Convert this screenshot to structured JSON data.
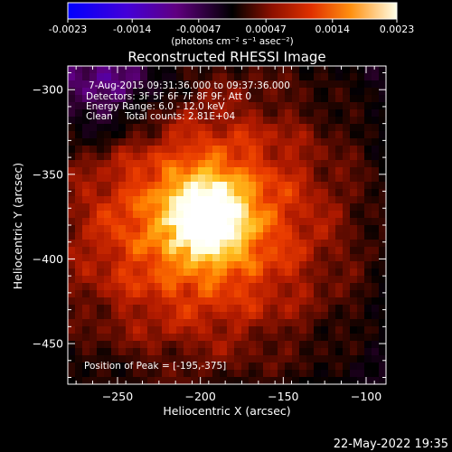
{
  "chart_data": {
    "type": "heatmap",
    "title": "Reconstructed RHESSI Image",
    "xlabel": "Heliocentric X (arcsec)",
    "ylabel": "Heliocentric Y (arcsec)",
    "xlim": [
      -280,
      -88
    ],
    "ylim": [
      -474,
      -286
    ],
    "x_ticks": [
      -250,
      -200,
      -150,
      -100
    ],
    "y_ticks": [
      -300,
      -350,
      -400,
      -450
    ],
    "grid": false,
    "colorbar": {
      "position": "top",
      "min": -0.0023,
      "max": 0.0023,
      "tick_values": [
        -0.0023,
        -0.0014,
        -0.00047,
        0.00047,
        0.0014,
        0.0023
      ],
      "tick_labels": [
        "-0.0023",
        "-0.0014",
        "-0.00047",
        "0.00047",
        "0.0014",
        "0.0023"
      ],
      "units": "(photons cm⁻² s⁻¹ asec⁻²)"
    },
    "annotations": [
      "7-Aug-2015 09:31:36.000 to 09:37:36.000",
      "Detectors: 3F 5F 6F 7F 8F 9F, Att 0",
      "Energy Range: 6.0 - 12.0 keV",
      "Clean    Total counts: 2.81E+04"
    ],
    "peak_label": "Position of Peak = [-195,-375]",
    "peak": {
      "x": -195,
      "y": -375,
      "value": 0.0023
    },
    "source_center": {
      "x": -200,
      "y": -378
    },
    "colors": {
      "negative": [
        "#0000ff",
        "#4400d8",
        "#600080",
        "#300030",
        "#000000"
      ],
      "positive": [
        "#000000",
        "#5a0a00",
        "#b01a00",
        "#e83a00",
        "#ff7a00",
        "#ffc020",
        "#ffffe0",
        "#ffffff"
      ]
    }
  },
  "footer_timestamp": "22-May-2022 19:35"
}
